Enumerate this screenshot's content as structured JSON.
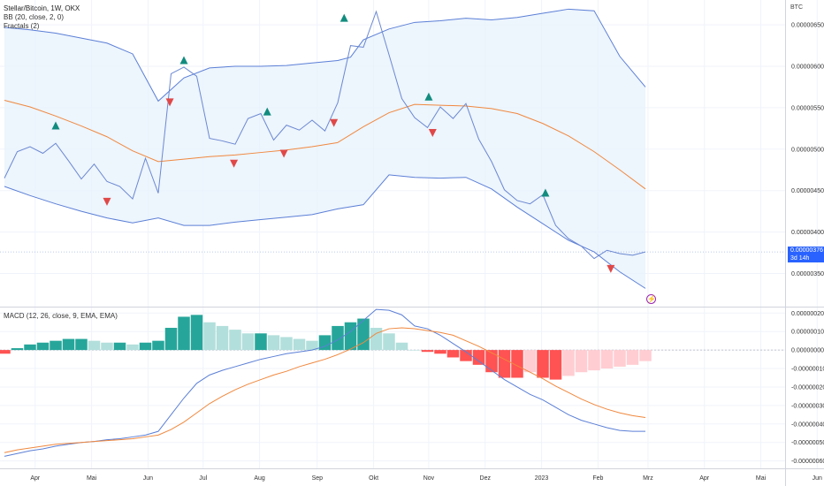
{
  "header": {
    "symbol_line": "Stellar/Bitcoin, 1W, OKX",
    "indicator_bb": "BB (20, close, 2, 0)",
    "indicator_fractals": "Fractals (2)",
    "indicator_macd": "MACD (12, 26, close, 9, EMA, EMA)",
    "currency": "BTC"
  },
  "price_badge": {
    "value": "0.00000376",
    "countdown": "3d 14h"
  },
  "colors": {
    "bb_band": "#5b7fd6",
    "bb_basis": "#f0883e",
    "bb_fill": "#e8f2fc",
    "price_line": "#6b88d1",
    "fractal_up": "#128c7e",
    "fractal_down": "#e04848",
    "hist_pos_strong": "#26a69a",
    "hist_pos_weak": "#b2dfdb",
    "hist_neg_strong": "#ff5252",
    "hist_neg_weak": "#ffcdd2",
    "macd_line": "#5b7fd6",
    "signal_line": "#f0883e",
    "badge": "#2962ff",
    "flash_icon": "#9c27b0"
  },
  "chart_data": [
    {
      "type": "line",
      "title": "Stellar/Bitcoin, 1W, OKX",
      "x_axis": {
        "unit": "week index",
        "range": [
          0,
          70
        ],
        "tick_labels": [
          {
            "x": 2.4,
            "label": "Apr"
          },
          {
            "x": 6.8,
            "label": "Mai"
          },
          {
            "x": 11.2,
            "label": "Jun"
          },
          {
            "x": 15.5,
            "label": "Jul"
          },
          {
            "x": 19.9,
            "label": "Aug"
          },
          {
            "x": 24.4,
            "label": "Sep"
          },
          {
            "x": 28.8,
            "label": "Okt"
          },
          {
            "x": 33.1,
            "label": "Nov"
          },
          {
            "x": 37.5,
            "label": "Dez"
          },
          {
            "x": 41.9,
            "label": "2023"
          },
          {
            "x": 46.3,
            "label": "Feb"
          },
          {
            "x": 50.2,
            "label": "Mrz"
          },
          {
            "x": 54.6,
            "label": "Apr"
          },
          {
            "x": 59.0,
            "label": "Mai"
          },
          {
            "x": 63.4,
            "label": "Jun"
          }
        ]
      },
      "y_axis": {
        "unit": "BTC",
        "range": [
          3.1e-06,
          6.8e-06
        ],
        "tick_labels": [
          "0.00000650",
          "0.00000600",
          "0.00000550",
          "0.00000500",
          "0.00000450",
          "0.00000400",
          "0.00000350"
        ],
        "tick_values": [
          6.5e-06,
          6e-06,
          5.5e-06,
          5e-06,
          4.5e-06,
          4e-06,
          3.5e-06
        ],
        "grid": true
      },
      "series": [
        {
          "role": "price",
          "x": [
            0,
            1,
            2,
            3,
            4,
            5,
            6,
            7,
            8,
            9,
            10,
            11,
            12,
            13,
            14,
            15,
            16,
            17,
            18,
            19,
            20,
            21,
            22,
            23,
            24,
            25,
            26,
            27,
            28,
            29,
            30,
            31,
            32,
            33,
            34,
            35,
            36,
            37,
            38,
            39,
            40,
            41,
            42,
            43,
            44,
            45,
            46,
            47,
            48,
            49,
            50
          ],
          "y": [
            4.65e-06,
            4.97e-06,
            5.03e-06,
            4.95e-06,
            5.07e-06,
            4.86e-06,
            4.64e-06,
            4.82e-06,
            4.61e-06,
            4.55e-06,
            4.4e-06,
            4.89e-06,
            4.47e-06,
            5.91e-06,
            5.99e-06,
            5.88e-06,
            5.13e-06,
            5.1e-06,
            5.06e-06,
            5.37e-06,
            5.43e-06,
            5.11e-06,
            5.29e-06,
            5.23e-06,
            5.35e-06,
            5.22e-06,
            5.56e-06,
            6.25e-06,
            6.23e-06,
            6.66e-06,
            6.14e-06,
            5.61e-06,
            5.38e-06,
            5.26e-06,
            5.51e-06,
            5.37e-06,
            5.55e-06,
            5.12e-06,
            4.85e-06,
            4.51e-06,
            4.38e-06,
            4.34e-06,
            4.45e-06,
            4.08e-06,
            3.92e-06,
            3.83e-06,
            3.68e-06,
            3.78e-06,
            3.74e-06,
            3.72e-06,
            3.76e-06
          ]
        },
        {
          "role": "bb_upper",
          "x": [
            0,
            2,
            4,
            6,
            8,
            10,
            12,
            14,
            16,
            18,
            20,
            22,
            24,
            26,
            27,
            28,
            30,
            32,
            34,
            36,
            38,
            40,
            42,
            44,
            46,
            48,
            50
          ],
          "y": [
            6.47e-06,
            6.44e-06,
            6.4e-06,
            6.34e-06,
            6.28e-06,
            6.15e-06,
            5.58e-06,
            5.86e-06,
            5.98e-06,
            6e-06,
            6e-06,
            6.01e-06,
            6.04e-06,
            6.07e-06,
            6.11e-06,
            6.32e-06,
            6.45e-06,
            6.53e-06,
            6.55e-06,
            6.58e-06,
            6.56e-06,
            6.59e-06,
            6.64e-06,
            6.69e-06,
            6.67e-06,
            6.12e-06,
            5.75e-06
          ]
        },
        {
          "role": "bb_basis",
          "x": [
            0,
            2,
            4,
            6,
            8,
            10,
            12,
            14,
            16,
            18,
            20,
            22,
            24,
            26,
            28,
            30,
            32,
            34,
            36,
            38,
            40,
            42,
            44,
            46,
            48,
            50
          ],
          "y": [
            5.59e-06,
            5.51e-06,
            5.4e-06,
            5.28e-06,
            5.15e-06,
            4.98e-06,
            4.85e-06,
            4.88e-06,
            4.91e-06,
            4.93e-06,
            4.96e-06,
            4.99e-06,
            5.03e-06,
            5.08e-06,
            5.27e-06,
            5.44e-06,
            5.54e-06,
            5.53e-06,
            5.52e-06,
            5.49e-06,
            5.43e-06,
            5.31e-06,
            5.16e-06,
            4.97e-06,
            4.75e-06,
            4.52e-06
          ]
        },
        {
          "role": "bb_lower",
          "x": [
            0,
            2,
            4,
            6,
            8,
            10,
            12,
            14,
            16,
            18,
            20,
            22,
            24,
            26,
            28,
            30,
            32,
            34,
            36,
            38,
            40,
            42,
            44,
            46,
            48,
            50
          ],
          "y": [
            4.55e-06,
            4.44e-06,
            4.34e-06,
            4.25e-06,
            4.17e-06,
            4.11e-06,
            4.17e-06,
            4.08e-06,
            4.08e-06,
            4.12e-06,
            4.15e-06,
            4.18e-06,
            4.21e-06,
            4.28e-06,
            4.33e-06,
            4.69e-06,
            4.66e-06,
            4.65e-06,
            4.66e-06,
            4.52e-06,
            4.3e-06,
            4.1e-06,
            3.9e-06,
            3.76e-06,
            3.52e-06,
            3.32e-06
          ]
        }
      ],
      "fractals_up": [
        {
          "x": 4.0,
          "y": 5.28e-06
        },
        {
          "x": 14.0,
          "y": 6.07e-06
        },
        {
          "x": 20.5,
          "y": 5.45e-06
        },
        {
          "x": 26.5,
          "y": 6.58e-06
        },
        {
          "x": 33.1,
          "y": 5.63e-06
        },
        {
          "x": 42.2,
          "y": 4.47e-06
        }
      ],
      "fractals_down": [
        {
          "x": 8.0,
          "y": 4.37e-06
        },
        {
          "x": 12.9,
          "y": 5.57e-06
        },
        {
          "x": 17.9,
          "y": 4.83e-06
        },
        {
          "x": 21.8,
          "y": 4.95e-06
        },
        {
          "x": 25.7,
          "y": 5.32e-06
        },
        {
          "x": 33.4,
          "y": 5.2e-06
        },
        {
          "x": 47.3,
          "y": 3.56e-06
        }
      ],
      "last_price": 3.76e-06
    },
    {
      "type": "bar",
      "title": "MACD (12, 26, close, 9, EMA, EMA)",
      "y_axis": {
        "range": [
          -6.4e-07,
          2.3e-07
        ],
        "tick_labels": [
          "0.00000020",
          "0.00000010",
          "0.00000000",
          "-0.00000010",
          "-0.00000020",
          "-0.00000030",
          "-0.00000040",
          "-0.00000050",
          "-0.00000060"
        ],
        "tick_values": [
          2e-07,
          1e-07,
          0,
          -1e-07,
          -2e-07,
          -3e-07,
          -4e-07,
          -5e-07,
          -6e-07
        ]
      },
      "x": [
        0,
        1,
        2,
        3,
        4,
        5,
        6,
        7,
        8,
        9,
        10,
        11,
        12,
        13,
        14,
        15,
        16,
        17,
        18,
        19,
        20,
        21,
        22,
        23,
        24,
        25,
        26,
        27,
        28,
        29,
        30,
        31,
        32,
        33,
        34,
        35,
        36,
        37,
        38,
        39,
        40,
        41,
        42,
        43,
        44,
        45,
        46,
        47,
        48,
        49,
        50
      ],
      "histogram": [
        -2e-08,
        1e-08,
        3e-08,
        4e-08,
        5e-08,
        6e-08,
        6e-08,
        5e-08,
        4e-08,
        4e-08,
        3e-08,
        4e-08,
        5e-08,
        1.2e-07,
        1.8e-07,
        1.9e-07,
        1.5e-07,
        1.3e-07,
        1.1e-07,
        9e-08,
        9e-08,
        8e-08,
        7e-08,
        6e-08,
        5e-08,
        8e-08,
        1.3e-07,
        1.5e-07,
        1.7e-07,
        1.2e-07,
        9e-08,
        4e-08,
        0.0,
        -1e-08,
        -2e-08,
        -4e-08,
        -6e-08,
        -8e-08,
        -1.2e-07,
        -1.5e-07,
        -1.5e-07,
        -1.2e-07,
        -1.5e-07,
        -1.6e-07,
        -1.4e-07,
        -1.2e-07,
        -1.1e-07,
        -1e-07,
        -9e-08,
        -8e-08,
        -6e-08
      ],
      "macd": [
        -5.75e-07,
        -5.6e-07,
        -5.45e-07,
        -5.35e-07,
        -5.2e-07,
        -5.1e-07,
        -5e-07,
        -4.95e-07,
        -4.85e-07,
        -4.8e-07,
        -4.7e-07,
        -4.6e-07,
        -4.4e-07,
        -3.5e-07,
        -2.6e-07,
        -1.8e-07,
        -1.35e-07,
        -1.1e-07,
        -9e-08,
        -7e-08,
        -5e-08,
        -3.5e-08,
        -2e-08,
        -1e-08,
        0.0,
        2e-08,
        5.5e-08,
        1e-07,
        1.6e-07,
        2.2e-07,
        2.15e-07,
        1.9e-07,
        1.3e-07,
        1.15e-07,
        8e-08,
        3.5e-08,
        -1e-08,
        -6e-08,
        -1.1e-07,
        -1.6e-07,
        -2e-07,
        -2.4e-07,
        -2.7e-07,
        -3.1e-07,
        -3.5e-07,
        -3.8e-07,
        -4e-07,
        -4.2e-07,
        -4.35e-07,
        -4.4e-07,
        -4.4e-07
      ],
      "signal": [
        -5.55e-07,
        -5.4e-07,
        -5.3e-07,
        -5.2e-07,
        -5.1e-07,
        -5.05e-07,
        -5e-07,
        -4.95e-07,
        -4.9e-07,
        -4.85e-07,
        -4.8e-07,
        -4.7e-07,
        -4.6e-07,
        -4.3e-07,
        -3.9e-07,
        -3.4e-07,
        -2.9e-07,
        -2.5e-07,
        -2.15e-07,
        -1.85e-07,
        -1.6e-07,
        -1.35e-07,
        -1.15e-07,
        -9e-08,
        -7e-08,
        -5e-08,
        -2.5e-08,
        5e-09,
        4e-08,
        9e-08,
        1.15e-07,
        1.2e-07,
        1.15e-07,
        1.05e-07,
        9.5e-08,
        8e-08,
        5e-08,
        2e-08,
        -1.5e-08,
        -5e-08,
        -8.5e-08,
        -1.2e-07,
        -1.55e-07,
        -1.95e-07,
        -2.3e-07,
        -2.65e-07,
        -2.95e-07,
        -3.2e-07,
        -3.4e-07,
        -3.55e-07,
        -3.65e-07
      ]
    }
  ]
}
